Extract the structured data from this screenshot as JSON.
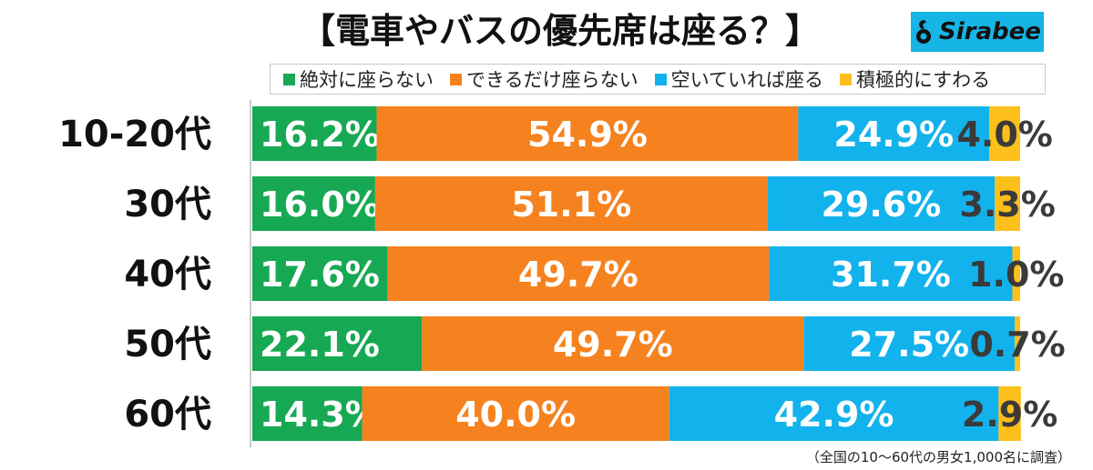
{
  "title": "【電車やバスの優先席は座る？】",
  "brand": "Sirabee",
  "footnote": "（全国の10〜60代の男女1,000名に調査）",
  "colors": {
    "green": "#17a853",
    "orange": "#f6821f",
    "blue": "#12b2ec",
    "yellow": "#fdbf1a"
  },
  "chart_data": {
    "type": "bar",
    "orientation": "horizontal",
    "stacked": true,
    "normalized": true,
    "categories": [
      "10-20代",
      "30代",
      "40代",
      "50代",
      "60代"
    ],
    "series": [
      {
        "name": "絶対に座らない",
        "color": "#17a853",
        "values": [
          16.2,
          16.0,
          17.6,
          22.1,
          14.3
        ],
        "labels": [
          "16.2%",
          "16.0%",
          "17.6%",
          "22.1%",
          "14.3%"
        ]
      },
      {
        "name": "できるだけ座らない",
        "color": "#f6821f",
        "values": [
          54.9,
          51.1,
          49.7,
          49.7,
          40.0
        ],
        "labels": [
          "54.9%",
          "51.1%",
          "49.7%",
          "49.7%",
          "40.0%"
        ]
      },
      {
        "name": "空いていれば座る",
        "color": "#12b2ec",
        "values": [
          24.9,
          29.6,
          31.7,
          27.5,
          42.9
        ],
        "labels": [
          "24.9%",
          "29.6%",
          "31.7%",
          "27.5%",
          "42.9%"
        ]
      },
      {
        "name": "積極的にすわる",
        "color": "#fdbf1a",
        "values": [
          4.0,
          3.3,
          1.0,
          0.7,
          2.9
        ],
        "labels": [
          "4.0%",
          "3.3%",
          "1.0%",
          "0.7%",
          "2.9%"
        ]
      }
    ],
    "xlim": [
      0,
      100
    ],
    "legend_position": "top"
  }
}
